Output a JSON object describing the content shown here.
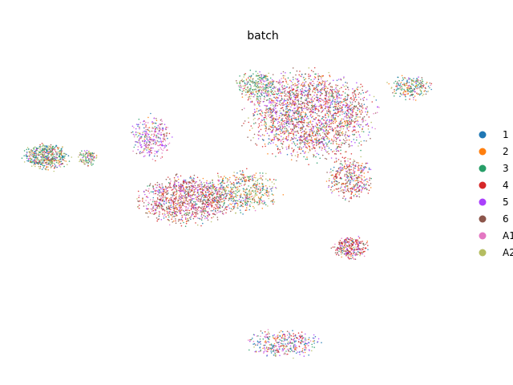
{
  "chart_data": {
    "type": "scatter",
    "title": "batch",
    "xlabel": "",
    "ylabel": "",
    "grid": false,
    "axes_visible": false,
    "legend_position": "right",
    "series": [
      {
        "name": "1",
        "color": "#1f77b4"
      },
      {
        "name": "2",
        "color": "#ff7f0e"
      },
      {
        "name": "3",
        "color": "#279e68"
      },
      {
        "name": "4",
        "color": "#d62728"
      },
      {
        "name": "5",
        "color": "#aa40fc"
      },
      {
        "name": "6",
        "color": "#8c564b"
      },
      {
        "name": "A1",
        "color": "#e377c2"
      },
      {
        "name": "A2",
        "color": "#b5bd61"
      }
    ],
    "clusters": [
      {
        "id": "left-cluster",
        "x": [
          -11.2,
          -6.0
        ],
        "y": [
          1.3,
          4.3
        ],
        "n": 520,
        "weights": [
          3,
          2,
          5,
          1,
          1,
          1,
          1,
          4
        ]
      },
      {
        "id": "left-tail",
        "x": [
          -6.0,
          -3.6
        ],
        "y": [
          1.8,
          3.6
        ],
        "n": 110,
        "weights": [
          1,
          1,
          4,
          1,
          1,
          1,
          1,
          5
        ]
      },
      {
        "id": "upper-small-cluster",
        "x": [
          -0.8,
          3.6
        ],
        "y": [
          2.2,
          7.2
        ],
        "n": 320,
        "weights": [
          2,
          1,
          1,
          1,
          6,
          2,
          5,
          1
        ]
      },
      {
        "id": "center-left-blob",
        "x": [
          -0.4,
          9.8
        ],
        "y": [
          -4.2,
          1.2
        ],
        "n": 1100,
        "weights": [
          1,
          1,
          1,
          5,
          2,
          5,
          3,
          1
        ]
      },
      {
        "id": "center-mixed-blob",
        "x": [
          6.0,
          14.2
        ],
        "y": [
          -2.9,
          1.8
        ],
        "n": 600,
        "weights": [
          2,
          3,
          4,
          2,
          1,
          1,
          2,
          5
        ]
      },
      {
        "id": "top-right-mass",
        "x": [
          9.6,
          23.8
        ],
        "y": [
          2.0,
          12.0
        ],
        "n": 2200,
        "weights": [
          2,
          2,
          2,
          6,
          4,
          5,
          2,
          2
        ]
      },
      {
        "id": "top-left-of-mass",
        "x": [
          9.2,
          14.0
        ],
        "y": [
          8.4,
          11.6
        ],
        "n": 300,
        "weights": [
          2,
          1,
          5,
          1,
          1,
          1,
          2,
          5
        ]
      },
      {
        "id": "far-right-arm",
        "x": [
          23.8,
          28.5
        ],
        "y": [
          8.4,
          11.2
        ],
        "n": 220,
        "weights": [
          4,
          3,
          4,
          1,
          1,
          3,
          1,
          3
        ]
      },
      {
        "id": "mid-right-lobe",
        "x": [
          18.0,
          23.0
        ],
        "y": [
          -1.8,
          3.2
        ],
        "n": 380,
        "weights": [
          2,
          2,
          2,
          5,
          3,
          5,
          2,
          2
        ]
      },
      {
        "id": "lower-right-cluster",
        "x": [
          18.6,
          22.6
        ],
        "y": [
          -7.5,
          -5.0
        ],
        "n": 300,
        "weights": [
          1,
          1,
          1,
          6,
          3,
          4,
          3,
          1
        ]
      },
      {
        "id": "bottom-cluster",
        "x": [
          10.2,
          18.3
        ],
        "y": [
          -17.3,
          -14.2
        ],
        "n": 360,
        "weights": [
          5,
          2,
          3,
          3,
          5,
          1,
          4,
          2
        ]
      }
    ]
  }
}
